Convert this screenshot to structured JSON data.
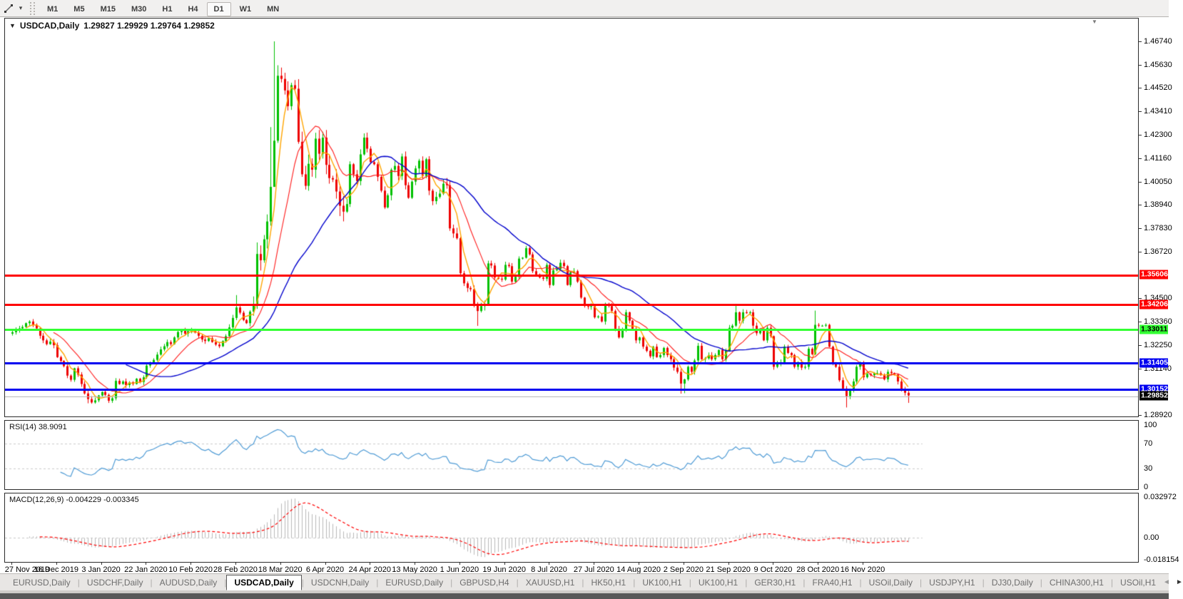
{
  "toolbar": {
    "timeframes": [
      "M1",
      "M5",
      "M15",
      "M30",
      "H1",
      "H4",
      "D1",
      "W1",
      "MN"
    ],
    "active": "D1"
  },
  "title": {
    "collapse_icon": "▼",
    "symbol": "USDCAD,Daily",
    "quotes": "1.29827 1.29929 1.29764 1.29852"
  },
  "tabs": {
    "items": [
      "EURUSD,Daily",
      "USDCHF,Daily",
      "AUDUSD,Daily",
      "USDCAD,Daily",
      "USDCNH,Daily",
      "EURUSD,Daily",
      "GBPUSD,H4",
      "XAUUSD,H1",
      "HK50,H1",
      "UK100,H1",
      "UK100,H1",
      "GER30,H1",
      "FRA40,H1",
      "USOil,Daily",
      "USDJPY,H1",
      "DJ30,Daily",
      "CHINA300,H1",
      "USOil,H1"
    ],
    "active_index": 3,
    "scroll_left": "◄",
    "scroll_right": "►"
  },
  "chart_data": {
    "type": "candlestick",
    "symbol": "USDCAD",
    "timeframe": "Daily",
    "ylim": [
      1.28852,
      1.47828
    ],
    "y_ticks": [
      "1.46740",
      "1.45630",
      "1.44520",
      "1.43410",
      "1.42300",
      "1.41160",
      "1.40050",
      "1.38940",
      "1.37830",
      "1.36720",
      "1.34500",
      "1.33360",
      "1.32250",
      "1.31140",
      "1.28920"
    ],
    "x_labels": [
      "27 Nov 2019",
      "16 Dec 2019",
      "3 Jan 2020",
      "22 Jan 2020",
      "10 Feb 2020",
      "28 Feb 2020",
      "18 Mar 2020",
      "6 Apr 2020",
      "24 Apr 2020",
      "13 May 2020",
      "1 Jun 2020",
      "19 Jun 2020",
      "8 Jul 2020",
      "27 Jul 2020",
      "14 Aug 2020",
      "2 Sep 2020",
      "21 Sep 2020",
      "9 Oct 2020",
      "28 Oct 2020",
      "16 Nov 2020"
    ],
    "x_label_day_indices": [
      0,
      13,
      26,
      39,
      52,
      65,
      78,
      91,
      104,
      117,
      130,
      143,
      156,
      169,
      182,
      195,
      208,
      221,
      234,
      247
    ],
    "first_open": 1.328,
    "opens_rule": "open equals previous close",
    "closes": [
      1.3287,
      1.3296,
      1.3305,
      1.3312,
      1.333,
      1.3338,
      1.3322,
      1.3305,
      1.327,
      1.3248,
      1.323,
      1.3242,
      1.3225,
      1.3168,
      1.315,
      1.3125,
      1.308,
      1.306,
      1.3115,
      1.3085,
      1.304,
      1.2995,
      1.2968,
      1.2952,
      1.2962,
      1.2985,
      1.3002,
      1.2988,
      1.296,
      1.2972,
      1.3055,
      1.304,
      1.3052,
      1.3035,
      1.3048,
      1.304,
      1.3065,
      1.305,
      1.3072,
      1.3128,
      1.314,
      1.3155,
      1.318,
      1.3205,
      1.322,
      1.324,
      1.323,
      1.3262,
      1.3288,
      1.3295,
      1.328,
      1.3292,
      1.3298,
      1.3285,
      1.327,
      1.3252,
      1.3245,
      1.3258,
      1.324,
      1.3228,
      1.322,
      1.3245,
      1.3268,
      1.331,
      1.3355,
      1.3405,
      1.338,
      1.3345,
      1.333,
      1.3385,
      1.342,
      1.366,
      1.363,
      1.373,
      1.3815,
      1.398,
      1.42,
      1.451,
      1.4495,
      1.444,
      1.4365,
      1.4465,
      1.4448,
      1.4195,
      1.404,
      1.3985,
      1.409,
      1.4062,
      1.421,
      1.4138,
      1.4215,
      1.4085,
      1.4022,
      1.4015,
      1.3958,
      1.389,
      1.3862,
      1.3898,
      1.4088,
      1.404,
      1.4008,
      1.4135,
      1.4215,
      1.4162,
      1.4098,
      1.4088,
      1.4028,
      1.3962,
      1.3882,
      1.394,
      1.4062,
      1.408,
      1.4032,
      1.4125,
      1.3988,
      1.3928,
      1.4005,
      1.4068,
      1.4105,
      1.4032,
      1.4112,
      1.3962,
      1.3912,
      1.3932,
      1.3948,
      1.3995,
      1.3988,
      1.3782,
      1.3758,
      1.3735,
      1.3568,
      1.352,
      1.3498,
      1.3492,
      1.342,
      1.3388,
      1.3412,
      1.3418,
      1.3615,
      1.3605,
      1.3548,
      1.3542,
      1.3538,
      1.3608,
      1.3602,
      1.3528,
      1.3552,
      1.3638,
      1.3642,
      1.3688,
      1.3658,
      1.3578,
      1.3562,
      1.3548,
      1.3542,
      1.3608,
      1.3512,
      1.3582,
      1.3588,
      1.3618,
      1.3602,
      1.3512,
      1.3572,
      1.3578,
      1.3528,
      1.3452,
      1.3412,
      1.3408,
      1.3412,
      1.3358,
      1.3362,
      1.3338,
      1.3422,
      1.3412,
      1.3388,
      1.3302,
      1.3262,
      1.3298,
      1.3382,
      1.3342,
      1.3302,
      1.3248,
      1.3262,
      1.3218,
      1.3198,
      1.3172,
      1.3218,
      1.3168,
      1.3178,
      1.3212,
      1.3178,
      1.3158,
      1.3118,
      1.3098,
      1.3042,
      1.3062,
      1.3122,
      1.3098,
      1.3152,
      1.3222,
      1.3158,
      1.3162,
      1.3178,
      1.3158,
      1.3178,
      1.3202,
      1.3158,
      1.3198,
      1.3308,
      1.3318,
      1.3382,
      1.3342,
      1.3382,
      1.3378,
      1.3382,
      1.3318,
      1.3282,
      1.3298,
      1.3248,
      1.3308,
      1.3268,
      1.3122,
      1.3138,
      1.3142,
      1.3218,
      1.3188,
      1.3178,
      1.3122,
      1.3142,
      1.3118,
      1.3122,
      1.3208,
      1.3182,
      1.3322,
      1.3318,
      1.3318,
      1.3322,
      1.3218,
      1.3142,
      1.3122,
      1.3058,
      1.3018,
      1.2982,
      1.3012,
      1.3052,
      1.3122,
      1.3138,
      1.3072,
      1.3088,
      1.3082,
      1.3092,
      1.3092,
      1.3082,
      1.3062,
      1.3098,
      1.3092,
      1.3085,
      1.3052,
      1.3012,
      1.2998,
      1.29852
    ],
    "wick_overrides": {
      "22": {
        "l": 1.2948
      },
      "23": {
        "l": 1.2946
      },
      "65": {
        "h": 1.3464
      },
      "71": {
        "h": 1.3715
      },
      "75": {
        "h": 1.4265
      },
      "76": {
        "h": 1.4674,
        "l": 1.411
      },
      "77": {
        "h": 1.456
      },
      "78": {
        "h": 1.4549
      },
      "135": {
        "l": 1.3317
      },
      "194": {
        "l": 1.2994
      },
      "195": {
        "l": 1.2996
      },
      "210": {
        "h": 1.3421
      },
      "233": {
        "h": 1.339
      },
      "242": {
        "l": 1.2928
      },
      "260": {
        "l": 1.295
      }
    },
    "colors": {
      "candle_up": "#00c000",
      "candle_down": "#ee0000"
    },
    "moving_averages": [
      {
        "period": 5,
        "color": "#ffa500",
        "width": 1.4
      },
      {
        "period": 13,
        "color": "#ff1a1a",
        "width": 1.1
      },
      {
        "period": 34,
        "color": "#0000cc",
        "width": 1.4
      }
    ],
    "horizontal_lines": [
      {
        "price": 1.35606,
        "label": "1.35606",
        "color": "#ff0000",
        "badge_bg": "#ff0000",
        "badge_fg": "#ffffff",
        "width": 3
      },
      {
        "price": 1.34206,
        "label": "1.34206",
        "color": "#ff0000",
        "badge_bg": "#ff0000",
        "badge_fg": "#ffffff",
        "width": 3
      },
      {
        "price": 1.33011,
        "label": "1.33011",
        "color": "#33ff33",
        "badge_bg": "#33ff33",
        "badge_fg": "#000000",
        "width": 3
      },
      {
        "price": 1.31405,
        "label": "1.31405",
        "color": "#0000f0",
        "badge_bg": "#0000f0",
        "badge_fg": "#ffffff",
        "width": 3
      },
      {
        "price": 1.30152,
        "label": "1.30152",
        "color": "#0000f0",
        "badge_bg": "#0000f0",
        "badge_fg": "#ffffff",
        "width": 3
      }
    ],
    "price_marker": {
      "price": 1.29852,
      "label": "1.29852",
      "line_color": "#b9b9b9",
      "badge_bg": "#000000",
      "badge_fg": "#ffffff",
      "width": 1
    },
    "rsi": {
      "display_label": "RSI(14) 38.9091",
      "period": 14,
      "current": 38.9091,
      "levels": [
        70,
        30
      ],
      "ylim": [
        -3.45,
        106.9
      ],
      "axis_ticks": [
        {
          "label": "100",
          "v": 100
        },
        {
          "label": "70",
          "v": 70
        },
        {
          "label": "30",
          "v": 30
        },
        {
          "label": "0",
          "v": 0
        }
      ],
      "color": "#4f9bd5",
      "level_color": "#c9c9c9"
    },
    "macd": {
      "display_label": "MACD(12,26,9) -0.004229 -0.003345",
      "fast": 12,
      "slow": 26,
      "signal": 9,
      "main_value": -0.004229,
      "signal_value": -0.003345,
      "ylim": [
        -0.019897,
        0.035877
      ],
      "axis_ticks": [
        {
          "label": "0.032972",
          "v": 0.032972
        },
        {
          "label": "0.00",
          "v": 0
        },
        {
          "label": "-0.018154",
          "v": -0.018154
        }
      ],
      "hist_color": "#b9b9b9",
      "signal_color": "#ff0000",
      "zero_color": "#c9c9c9"
    }
  }
}
